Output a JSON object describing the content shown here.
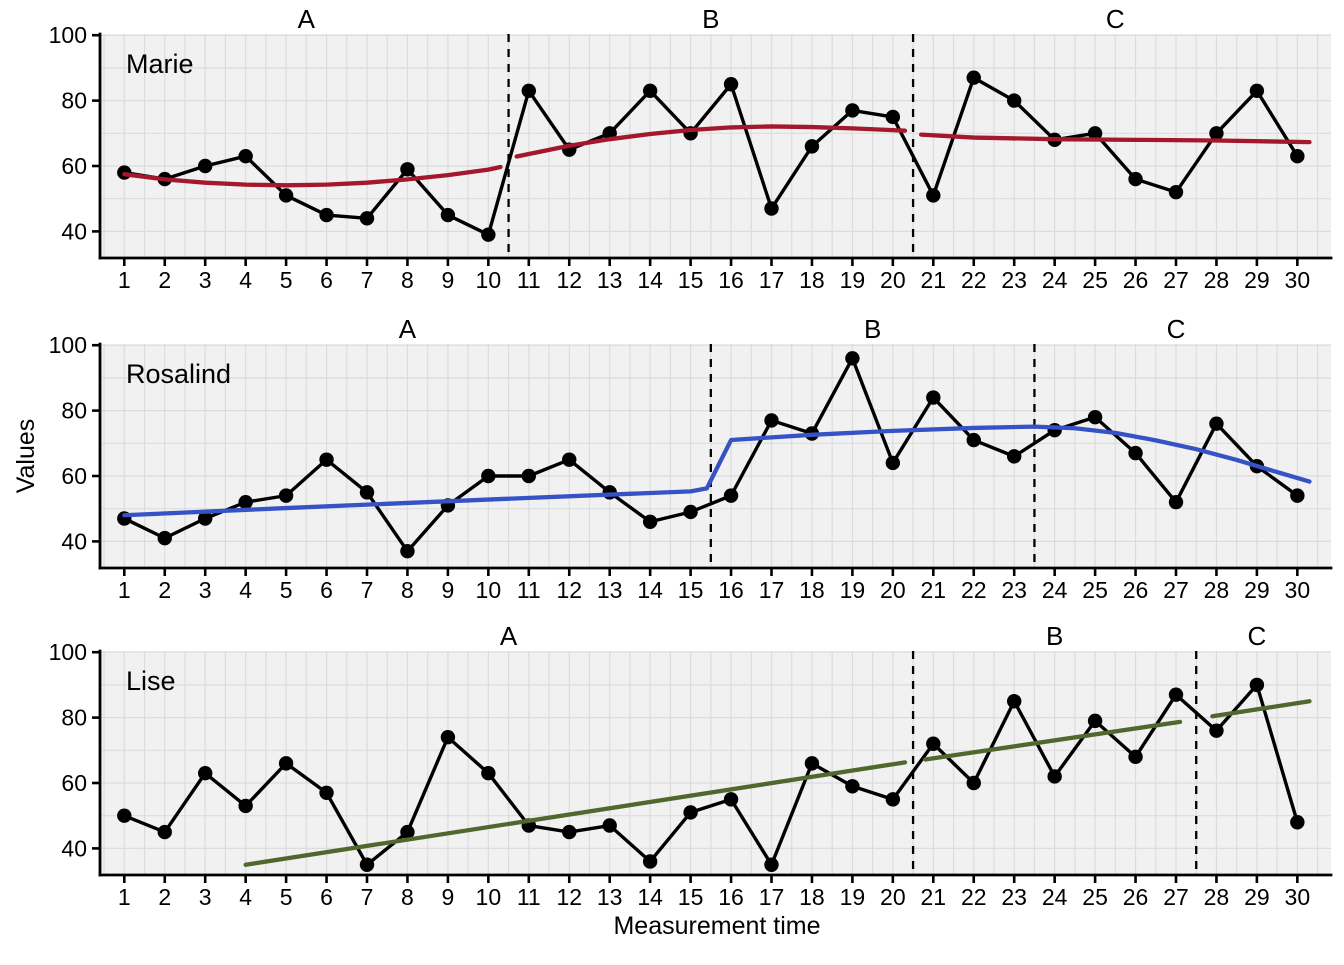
{
  "figure": {
    "xlabel": "Measurement time",
    "ylabel": "Values",
    "y_ticks": [
      40,
      60,
      80,
      100
    ],
    "x_ticks": [
      1,
      2,
      3,
      4,
      5,
      6,
      7,
      8,
      9,
      10,
      11,
      12,
      13,
      14,
      15,
      16,
      17,
      18,
      19,
      20,
      21,
      22,
      23,
      24,
      25,
      26,
      27,
      28,
      29,
      30
    ],
    "colors": {
      "background": "#FFFFFF",
      "panel_background": "#F1F1F1",
      "grid": "#DCDCDC",
      "axis": "#000000",
      "data_line": "#000000",
      "data_point": "#000000",
      "phase_change_line": "#000000",
      "trend_marie": "#A3182A",
      "trend_rosalind": "#3653C6",
      "trend_lise": "#50682D"
    }
  },
  "chart_data": [
    {
      "type": "line",
      "case": "Marie",
      "x": [
        1,
        2,
        3,
        4,
        5,
        6,
        7,
        8,
        9,
        10,
        11,
        12,
        13,
        14,
        15,
        16,
        17,
        18,
        19,
        20,
        21,
        22,
        23,
        24,
        25,
        26,
        27,
        28,
        29,
        30
      ],
      "values": [
        58,
        56,
        60,
        63,
        51,
        45,
        44,
        59,
        45,
        39,
        83,
        65,
        70,
        83,
        70,
        85,
        47,
        66,
        77,
        75,
        51,
        87,
        80,
        68,
        70,
        56,
        52,
        70,
        83,
        63
      ],
      "phases": [
        {
          "label": "A",
          "start": 1,
          "end": 10
        },
        {
          "label": "B",
          "start": 11,
          "end": 20
        },
        {
          "label": "C",
          "start": 21,
          "end": 30
        }
      ],
      "phase_change_x": [
        10.5,
        20.5
      ],
      "trend_color": "#A3182A",
      "trend_segments": [
        [
          [
            1,
            57.5
          ],
          [
            2,
            55.9
          ],
          [
            3,
            54.9
          ],
          [
            4,
            54.3
          ],
          [
            5,
            54.1
          ],
          [
            6,
            54.3
          ],
          [
            7,
            54.9
          ],
          [
            8,
            55.9
          ],
          [
            9,
            57.2
          ],
          [
            10,
            58.9
          ],
          [
            10.3,
            59.7
          ]
        ],
        [
          [
            10.7,
            62.9
          ],
          [
            12,
            66.2
          ],
          [
            13,
            68.2
          ],
          [
            14,
            69.8
          ],
          [
            15,
            71.0
          ],
          [
            16,
            71.8
          ],
          [
            17,
            72.1
          ],
          [
            18,
            71.9
          ],
          [
            19,
            71.5
          ],
          [
            20.3,
            70.8
          ]
        ],
        [
          [
            20.7,
            69.6
          ],
          [
            22,
            68.7
          ],
          [
            24,
            68.2
          ],
          [
            26,
            68.0
          ],
          [
            28,
            67.8
          ],
          [
            30.3,
            67.3
          ]
        ]
      ],
      "ylim": [
        31,
        100
      ],
      "grid": true
    },
    {
      "type": "line",
      "case": "Rosalind",
      "x": [
        1,
        2,
        3,
        4,
        5,
        6,
        7,
        8,
        9,
        10,
        11,
        12,
        13,
        14,
        15,
        16,
        17,
        18,
        19,
        20,
        21,
        22,
        23,
        24,
        25,
        26,
        27,
        28,
        29,
        30
      ],
      "values": [
        47,
        41,
        47,
        52,
        54,
        65,
        55,
        37,
        51,
        60,
        60,
        65,
        55,
        46,
        49,
        54,
        77,
        73,
        96,
        64,
        84,
        71,
        66,
        74,
        78,
        67,
        52,
        76,
        63,
        54
      ],
      "phases": [
        {
          "label": "A",
          "start": 1,
          "end": 15
        },
        {
          "label": "B",
          "start": 16,
          "end": 23
        },
        {
          "label": "C",
          "start": 24,
          "end": 30
        }
      ],
      "phase_change_x": [
        15.5,
        23.5
      ],
      "trend_color": "#3653C6",
      "trend_segments": [
        [
          [
            1,
            48.0
          ],
          [
            5,
            50.2
          ],
          [
            10,
            52.8
          ],
          [
            15,
            55.3
          ],
          [
            15.4,
            56.2
          ],
          [
            16,
            71.0
          ],
          [
            18,
            72.6
          ],
          [
            20,
            73.8
          ],
          [
            22,
            74.7
          ],
          [
            23.5,
            75.1
          ],
          [
            24.5,
            74.6
          ],
          [
            25.5,
            73.2
          ],
          [
            26.5,
            70.9
          ],
          [
            27.5,
            68.2
          ],
          [
            28.5,
            64.9
          ],
          [
            29.5,
            61.2
          ],
          [
            30.3,
            58.3
          ]
        ]
      ],
      "ylim": [
        31,
        100
      ],
      "grid": true
    },
    {
      "type": "line",
      "case": "Lise",
      "x": [
        1,
        2,
        3,
        4,
        5,
        6,
        7,
        8,
        9,
        10,
        11,
        12,
        13,
        14,
        15,
        16,
        17,
        18,
        19,
        20,
        21,
        22,
        23,
        24,
        25,
        26,
        27,
        28,
        29,
        30
      ],
      "values": [
        50,
        45,
        63,
        53,
        66,
        57,
        35,
        45,
        74,
        63,
        47,
        45,
        47,
        36,
        51,
        55,
        35,
        66,
        59,
        55,
        72,
        60,
        85,
        62,
        79,
        68,
        87,
        76,
        90,
        48
      ],
      "phases": [
        {
          "label": "A",
          "start": 1,
          "end": 20
        },
        {
          "label": "B",
          "start": 21,
          "end": 27
        },
        {
          "label": "C",
          "start": 28,
          "end": 30
        }
      ],
      "phase_change_x": [
        20.5,
        27.5
      ],
      "trend_color": "#50682D",
      "trend_segments": [
        [
          [
            4,
            35.0
          ],
          [
            20.3,
            66.3
          ]
        ],
        [
          [
            20.8,
            67.2
          ],
          [
            27.1,
            78.7
          ]
        ],
        [
          [
            27.9,
            80.4
          ],
          [
            30.3,
            85.0
          ]
        ]
      ],
      "ylim": [
        31,
        100
      ],
      "grid": true
    }
  ]
}
